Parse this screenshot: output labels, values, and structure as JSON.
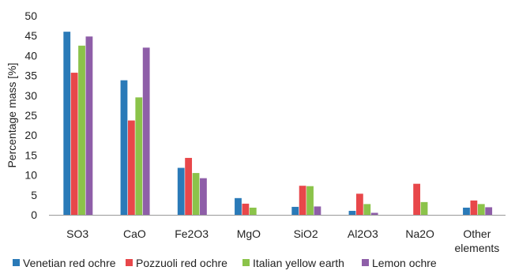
{
  "chart_data": {
    "type": "bar",
    "ylabel": "Percentage mass [%]",
    "xlabel": "",
    "ylim": [
      0,
      50
    ],
    "yticks": [
      "0",
      "5",
      "10",
      "15",
      "20",
      "25",
      "30",
      "35",
      "40",
      "45",
      "50"
    ],
    "grid": false,
    "legend_position": "bottom",
    "categories": [
      [
        "SO3"
      ],
      [
        "CaO"
      ],
      [
        "Fe2O3"
      ],
      [
        "MgO"
      ],
      [
        "SiO2"
      ],
      [
        "Al2O3"
      ],
      [
        "Na2O"
      ],
      [
        "Other",
        "elements"
      ]
    ],
    "series": [
      {
        "name": "Venetian red ochre",
        "color": "#2a7ab8",
        "values": [
          46.0,
          33.8,
          11.8,
          4.2,
          2.0,
          1.0,
          0,
          1.8
        ]
      },
      {
        "name": "Pozzuoli red ochre",
        "color": "#e8474a",
        "values": [
          35.7,
          23.7,
          14.3,
          2.8,
          7.3,
          5.3,
          7.8,
          3.6
        ]
      },
      {
        "name": "Italian yellow earth",
        "color": "#8bc34a",
        "values": [
          42.5,
          29.5,
          10.5,
          1.8,
          7.2,
          2.7,
          3.2,
          2.7
        ]
      },
      {
        "name": "Lemon ochre",
        "color": "#8e5ea8",
        "values": [
          44.8,
          42.0,
          9.2,
          0,
          2.1,
          0.5,
          0,
          1.9
        ]
      }
    ]
  }
}
